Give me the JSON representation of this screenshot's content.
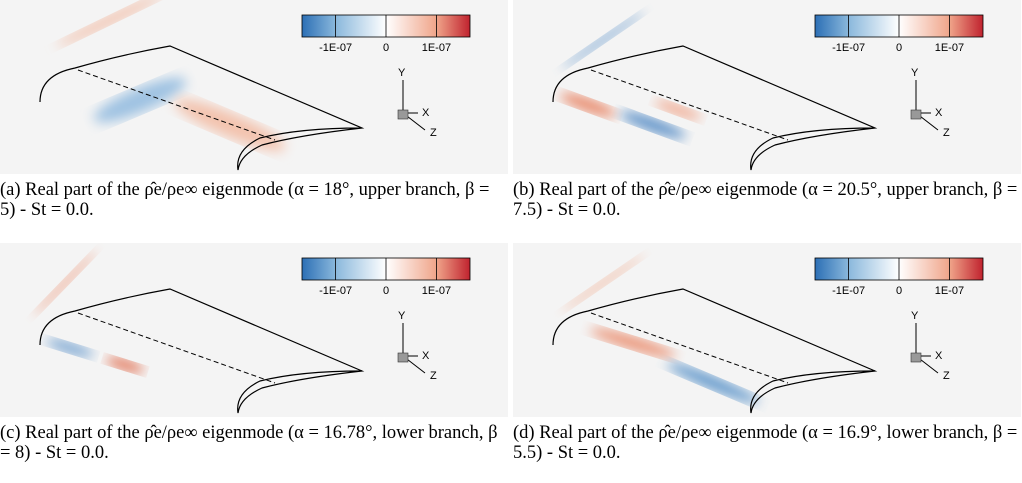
{
  "panels": [
    {
      "colorbar_ticks": [
        "-1E-07",
        "0",
        "1E-07"
      ],
      "axes": [
        "Y",
        "X",
        "Z"
      ],
      "caption": "(a) Real part of the ρ̂e/ρe∞ eigenmode (α = 18°, upper branch, β = 5) - St = 0.0."
    },
    {
      "colorbar_ticks": [
        "-1E-07",
        "0",
        "1E-07"
      ],
      "axes": [
        "Y",
        "X",
        "Z"
      ],
      "caption": "(b) Real part of the ρ̂e/ρe∞ eigenmode (α = 20.5°, upper branch, β = 7.5) - St = 0.0."
    },
    {
      "colorbar_ticks": [
        "-1E-07",
        "0",
        "1E-07"
      ],
      "axes": [
        "Y",
        "X",
        "Z"
      ],
      "caption": "(c) Real part of the ρ̂e/ρe∞ eigenmode (α = 16.78°, lower branch, β = 8) - St = 0.0."
    },
    {
      "colorbar_ticks": [
        "-1E-07",
        "0",
        "1E-07"
      ],
      "axes": [
        "Y",
        "X",
        "Z"
      ],
      "caption": "(d) Real part of the ρ̂e/ρe∞ eigenmode (α = 16.9°, lower branch, β = 5.5) - St = 0.0."
    }
  ]
}
